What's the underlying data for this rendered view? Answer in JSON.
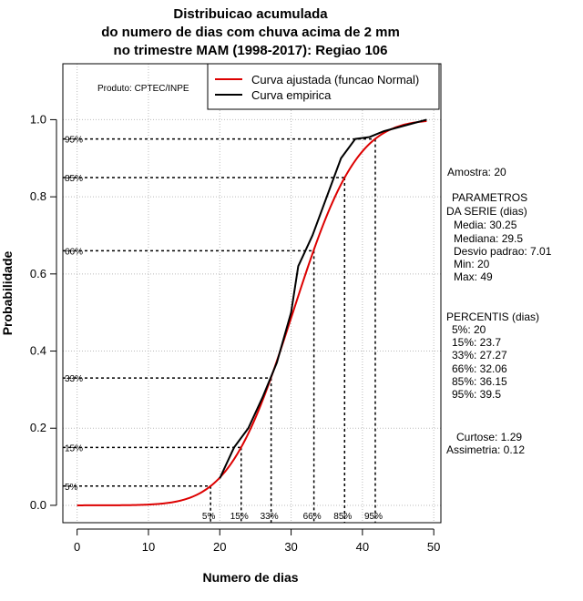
{
  "chart_data": {
    "type": "line",
    "title_lines": [
      "Distribuicao acumulada",
      "do numero de dias com chuva acima de 2 mm",
      "no trimestre MAM (1998-2017): Regiao 106"
    ],
    "xlabel": "Numero de dias",
    "ylabel": "Probabilidade",
    "xlim": [
      -2,
      51
    ],
    "ylim": [
      -0.045,
      1.145
    ],
    "x_ticks": [
      0,
      10,
      20,
      30,
      40,
      50
    ],
    "y_ticks": [
      0.0,
      0.2,
      0.4,
      0.6,
      0.8,
      1.0
    ],
    "x_tick_labels": [
      "0",
      "10",
      "20",
      "30",
      "40",
      "50"
    ],
    "y_tick_labels": [
      "0.0",
      "0.2",
      "0.4",
      "0.6",
      "0.8",
      "1.0"
    ],
    "grid": true,
    "producer": "Produto: CPTEC/INPE",
    "legend": {
      "position": "top-right",
      "entries": [
        {
          "label": "Curva ajustada (funcao Normal)",
          "color": "#dd0000"
        },
        {
          "label": "Curva empirica",
          "color": "#000000"
        }
      ]
    },
    "series": [
      {
        "name": "Curva ajustada (funcao Normal)",
        "color": "#dd0000",
        "distribution": "normal",
        "mean": 30.25,
        "sd": 7.01,
        "x_range": [
          0,
          49
        ]
      },
      {
        "name": "Curva empirica",
        "color": "#000000",
        "x": [
          20,
          22,
          24,
          26,
          28,
          30,
          31,
          32,
          33,
          35,
          37,
          39,
          41,
          43,
          45,
          47,
          49
        ],
        "y": [
          0.07,
          0.15,
          0.2,
          0.28,
          0.37,
          0.5,
          0.62,
          0.66,
          0.7,
          0.8,
          0.9,
          0.95,
          0.955,
          0.97,
          0.98,
          0.99,
          1.0
        ]
      }
    ],
    "percentile_markers": [
      {
        "label": "5%",
        "x": 18.71,
        "y": 0.05
      },
      {
        "label": "15%",
        "x": 23.0,
        "y": 0.15
      },
      {
        "label": "33%",
        "x": 27.2,
        "y": 0.33
      },
      {
        "label": "66%",
        "x": 33.2,
        "y": 0.66
      },
      {
        "label": "85%",
        "x": 37.5,
        "y": 0.85
      },
      {
        "label": "95%",
        "x": 41.8,
        "y": 0.95
      }
    ]
  },
  "side_panel": {
    "amostra": "Amostra: 20",
    "param_lines": [
      "PARAMETROS",
      "DA SERIE (dias)"
    ],
    "stats": [
      "Media: 30.25",
      "Mediana: 29.5",
      "Desvio padrao: 7.01",
      "Min: 20",
      "Max: 49"
    ],
    "percentis_title": "PERCENTIS (dias)",
    "percentis": [
      "5%: 20",
      "15%: 23.7",
      "33%: 27.27",
      "66%: 32.06",
      "85%: 36.15",
      "95%: 39.5"
    ],
    "curtose": "Curtose: 1.29",
    "assimetria": "Assimetria: 0.12"
  }
}
